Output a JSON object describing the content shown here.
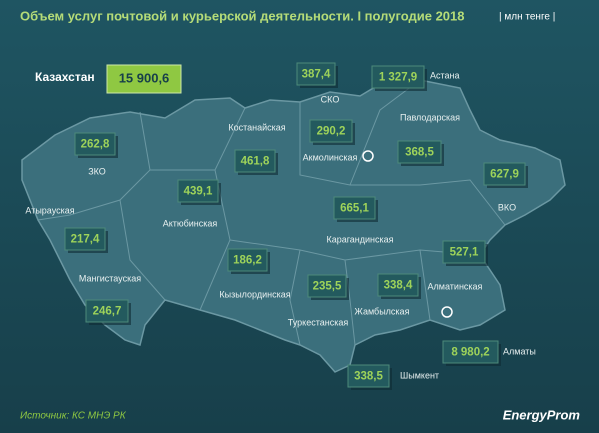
{
  "header": {
    "title": "Объем услуг почтовой и курьерской деятельности. I полугодие 2018",
    "unit": "| млн тенге |"
  },
  "total": {
    "label": "Казахстан",
    "value": "15 900,6"
  },
  "regions": [
    {
      "name": "СКО",
      "value": "387,4"
    },
    {
      "name": "Астана",
      "value": "1 327,9"
    },
    {
      "name": "Костанайская",
      "value": "461,8"
    },
    {
      "name": "Акмолинская",
      "value": "290,2"
    },
    {
      "name": "Павлодарская",
      "value": "368,5"
    },
    {
      "name": "ЗКО",
      "value": "262,8"
    },
    {
      "name": "ВКО",
      "value": "627,9"
    },
    {
      "name": "Актюбинская",
      "value": "439,1"
    },
    {
      "name": "Атырауская",
      "value": "217,4"
    },
    {
      "name": "Карагандинская",
      "value": "665,1"
    },
    {
      "name": "Алматинская",
      "value": "527,1"
    },
    {
      "name": "Мангистауская",
      "value": "246,7"
    },
    {
      "name": "Кызылординская",
      "value": "186,2"
    },
    {
      "name": "Туркестанская",
      "value": "235,5"
    },
    {
      "name": "Жамбылская",
      "value": "338,4"
    },
    {
      "name": "Алматы",
      "value": "8 980,2"
    },
    {
      "name": "Шымкент",
      "value": "338,5"
    }
  ],
  "footer": {
    "source": "Источник: КС МНЭ РК",
    "brand": "EnergyProm"
  }
}
